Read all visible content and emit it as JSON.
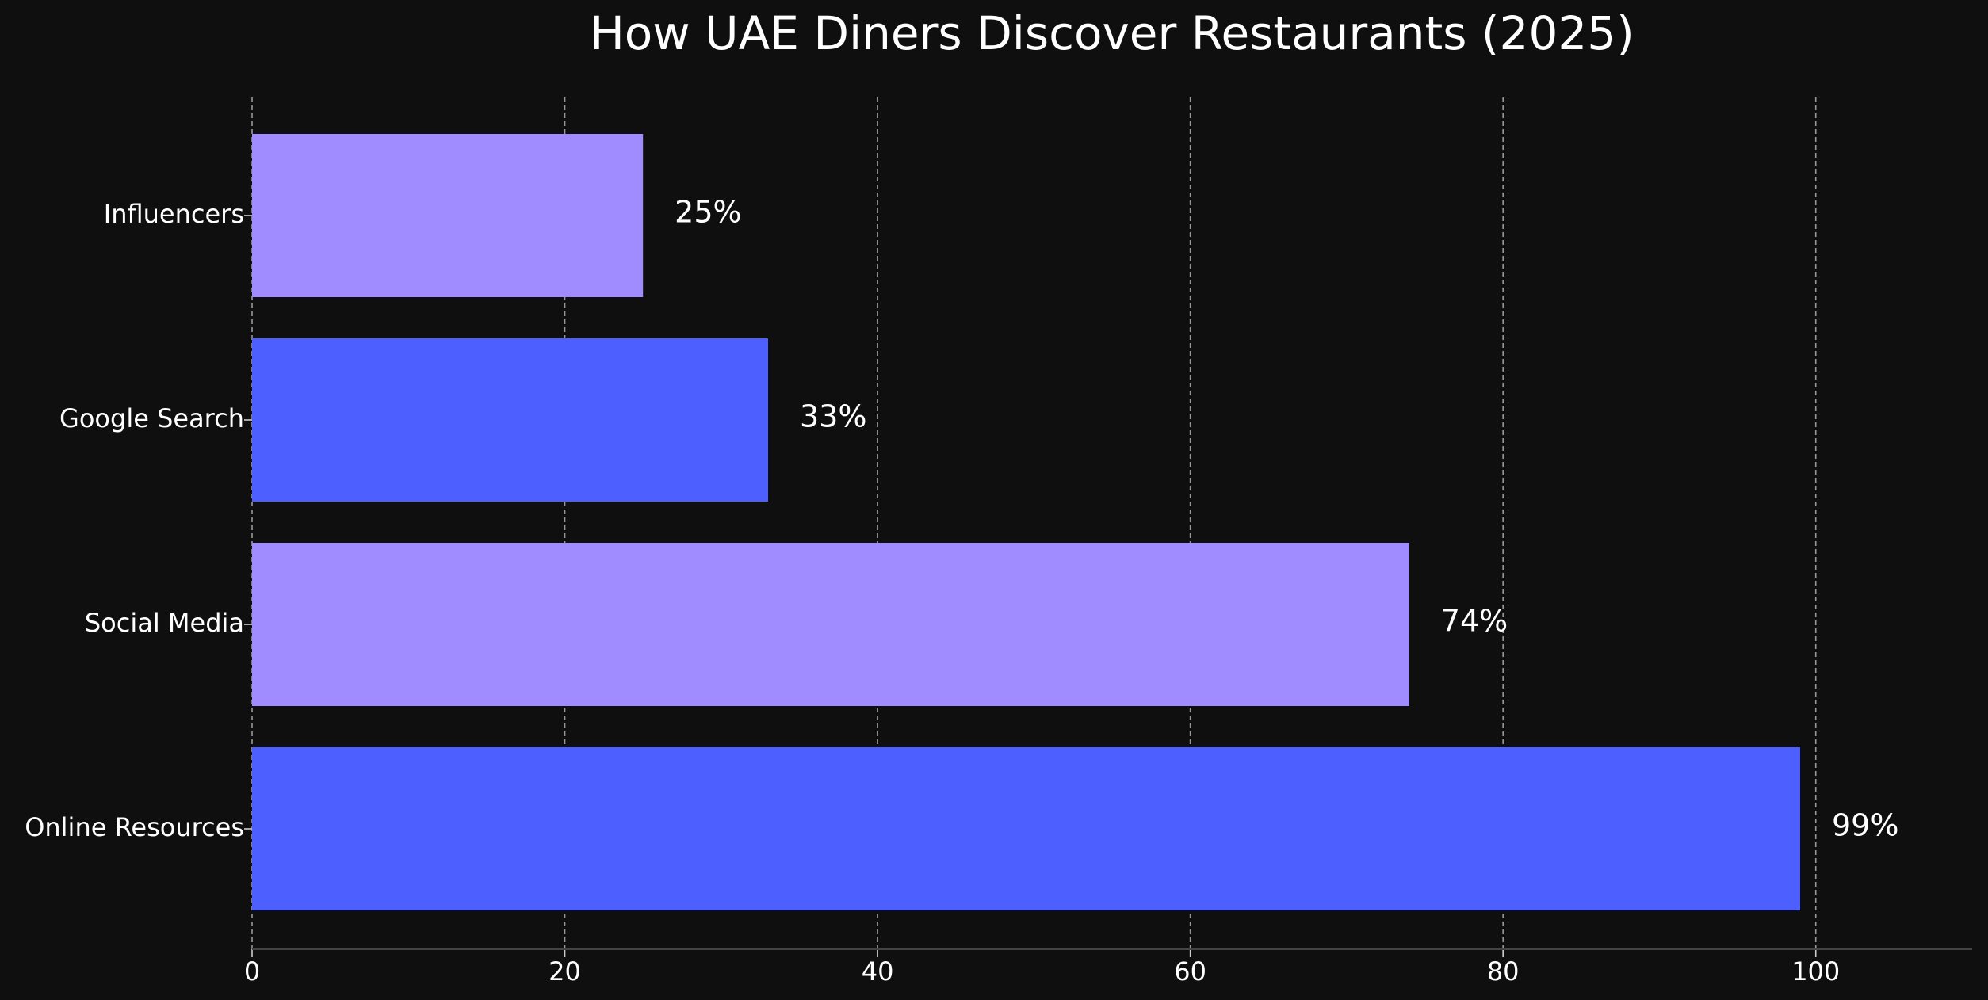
{
  "chart_data": {
    "type": "bar",
    "orientation": "horizontal",
    "title": "How UAE Diners Discover Restaurants (2025)",
    "categories": [
      "Online Resources",
      "Social Media",
      "Google Search",
      "Influencers"
    ],
    "values": [
      99,
      74,
      33,
      25
    ],
    "value_labels": [
      "99%",
      "74%",
      "33%",
      "25%"
    ],
    "colors": [
      "#4d5fff",
      "#a08cff",
      "#4d5fff",
      "#a08cff"
    ],
    "xlim": [
      0,
      110
    ],
    "xticks": [
      0,
      20,
      40,
      60,
      80,
      100
    ],
    "grid": true
  }
}
